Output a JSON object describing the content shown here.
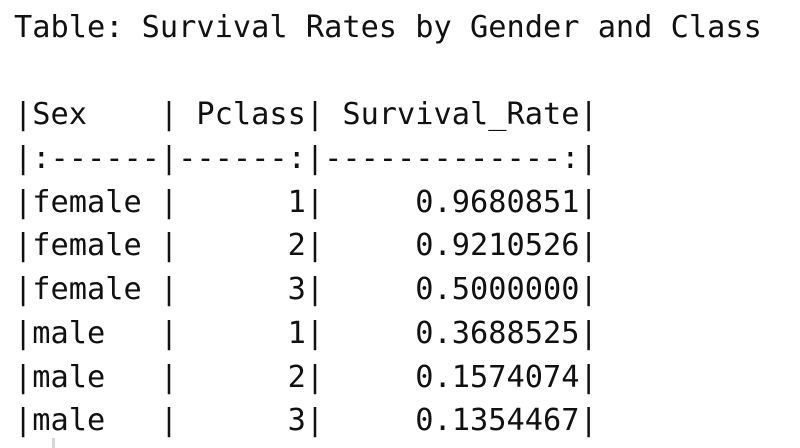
{
  "document": {
    "title": "Table: Survival Rates by Gender and Class",
    "header_row": "|Sex    | Pclass| Survival_Rate|",
    "separator_row": "|:------|------:|-------------:|",
    "rows": [
      "|female |      1|     0.9680851|",
      "|female |      2|     0.9210526|",
      "|female |      3|     0.5000000|",
      "|male   |      1|     0.3688525|",
      "|male   |      2|     0.1574074|",
      "|male   |      3|     0.1354467|"
    ]
  },
  "table": {
    "columns": [
      "Sex",
      "Pclass",
      "Survival_Rate"
    ],
    "data": [
      {
        "Sex": "female",
        "Pclass": 1,
        "Survival_Rate": 0.9680851
      },
      {
        "Sex": "female",
        "Pclass": 2,
        "Survival_Rate": 0.9210526
      },
      {
        "Sex": "female",
        "Pclass": 3,
        "Survival_Rate": 0.5
      },
      {
        "Sex": "male",
        "Pclass": 1,
        "Survival_Rate": 0.3688525
      },
      {
        "Sex": "male",
        "Pclass": 2,
        "Survival_Rate": 0.1574074
      },
      {
        "Sex": "male",
        "Pclass": 3,
        "Survival_Rate": 0.1354467
      }
    ]
  }
}
